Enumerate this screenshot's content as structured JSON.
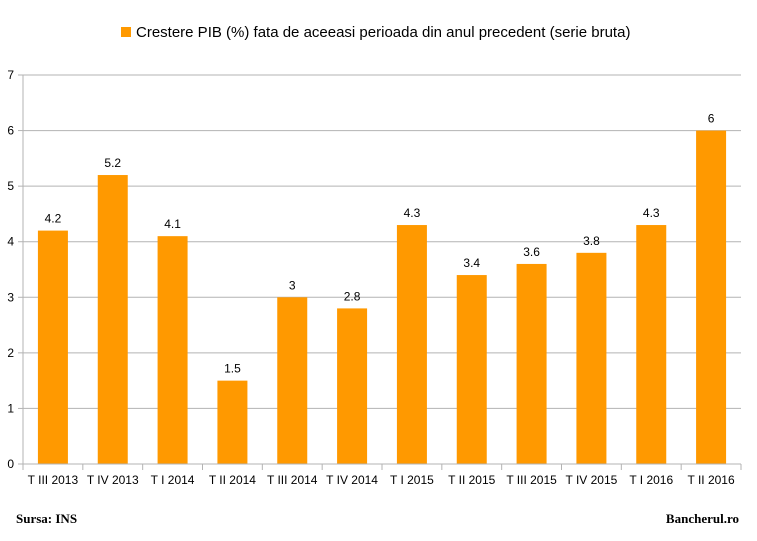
{
  "chart_data": {
    "type": "bar",
    "title": "",
    "xlabel": "",
    "ylabel": "",
    "legend_position": "top",
    "grid": true,
    "ylim": [
      0,
      7
    ],
    "yticks": [
      "0",
      "1",
      "2",
      "3",
      "4",
      "5",
      "6",
      "7"
    ],
    "categories": [
      "T III 2013",
      "T IV 2013",
      "T I 2014",
      "T II 2014",
      "T III 2014",
      "T IV 2014",
      "T I 2015",
      "T II 2015",
      "T III 2015",
      "T IV 2015",
      "T I 2016",
      "T II 2016"
    ],
    "series": [
      {
        "name": "Crestere PIB (%) fata de aceeasi perioada din anul precedent (serie bruta)",
        "color": "#ff9900",
        "values": [
          4.2,
          5.2,
          4.1,
          1.5,
          3,
          2.8,
          4.3,
          3.4,
          3.6,
          3.8,
          4.3,
          6
        ],
        "labels": [
          "4.2",
          "5.2",
          "4.1",
          "1.5",
          "3",
          "2.8",
          "4.3",
          "3.4",
          "3.6",
          "3.8",
          "4.3",
          "6"
        ]
      }
    ]
  },
  "footer": {
    "source": "Sursa: INS",
    "brand": "Bancherul.ro"
  },
  "colors": {
    "bar": "#ff9900",
    "grid": "#b3b3b3",
    "axis": "#b3b3b3"
  }
}
